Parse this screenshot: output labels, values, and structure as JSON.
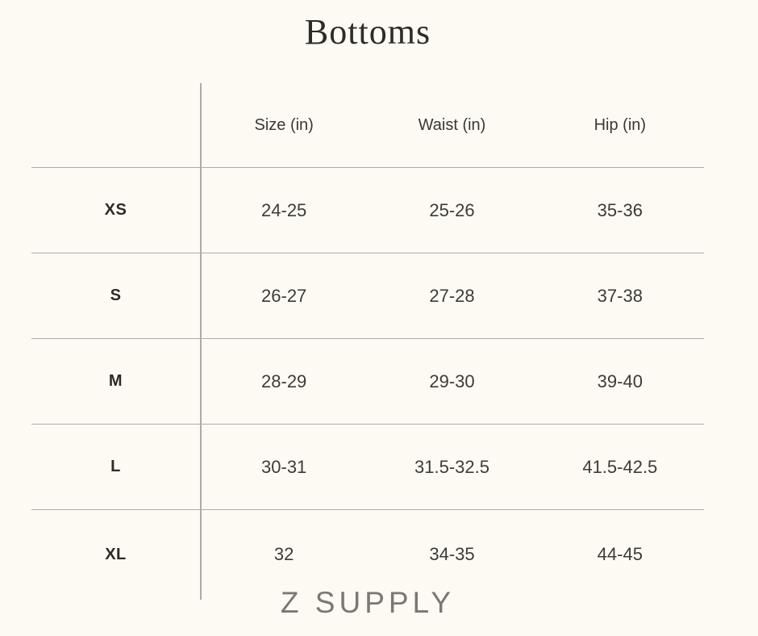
{
  "title": "Bottoms",
  "brand": "Z SUPPLY",
  "colors": {
    "background": "#fdfaf3",
    "line": "#adabaa",
    "text": "#3d3b38",
    "title_text": "#2e2c29",
    "brand_text": "#7b7772"
  },
  "chart_data": {
    "type": "table",
    "title": "Bottoms",
    "columns": [
      "Size (in)",
      "Waist (in)",
      "Hip (in)"
    ],
    "rows": [
      {
        "label": "XS",
        "values": [
          "24-25",
          "25-26",
          "35-36"
        ]
      },
      {
        "label": "S",
        "values": [
          "26-27",
          "27-28",
          "37-38"
        ]
      },
      {
        "label": "M",
        "values": [
          "28-29",
          "29-30",
          "39-40"
        ]
      },
      {
        "label": "L",
        "values": [
          "30-31",
          "31.5-32.5",
          "41.5-42.5"
        ]
      },
      {
        "label": "XL",
        "values": [
          "32",
          "34-35",
          "44-45"
        ]
      }
    ],
    "footer_brand": "Z SUPPLY",
    "layout": {
      "grid": "horizontal rules between rows, single vertical divider after label column",
      "units": "inches"
    }
  }
}
